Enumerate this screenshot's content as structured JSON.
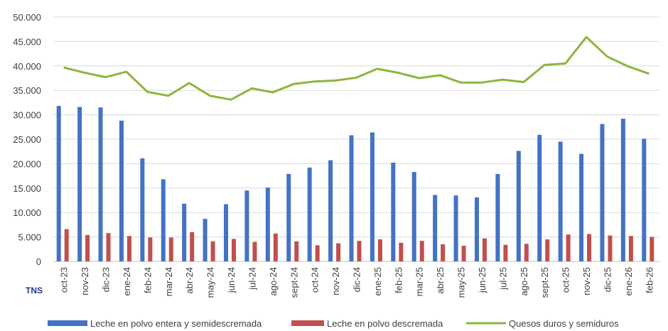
{
  "chart_data": {
    "type": "bar",
    "unit_label": "TNS",
    "ylim": [
      0,
      50000
    ],
    "yticks": [
      "0",
      "5.000",
      "10.000",
      "15.000",
      "20.000",
      "25.000",
      "30.000",
      "35.000",
      "40.000",
      "45.000",
      "50.000"
    ],
    "categories": [
      "oct-23",
      "nov-23",
      "dic-23",
      "ene-24",
      "feb-24",
      "mar-24",
      "abr-24",
      "may-24",
      "jun-24",
      "jul-24",
      "ago-24",
      "sept-24",
      "oct-24",
      "nov-24",
      "dic-24",
      "ene-25",
      "feb-25",
      "mar-25",
      "abr-25",
      "may-25",
      "jun-25",
      "jul-25",
      "ago-25",
      "sept-25",
      "oct-25",
      "nov-25",
      "dic-25",
      "ene-26",
      "feb-26"
    ],
    "grid": "horizontal",
    "legend_position": "bottom",
    "series": [
      {
        "name": "Leche en polvo entera y semidescremada",
        "kind": "bar",
        "color": "#4472c4",
        "values": [
          31800,
          31600,
          31500,
          28800,
          21100,
          16800,
          11800,
          8700,
          11700,
          14500,
          15100,
          17900,
          19200,
          20700,
          25800,
          26400,
          20200,
          18300,
          13600,
          13500,
          13100,
          17900,
          22600,
          25900,
          24500,
          22000,
          28100,
          29200,
          25100
        ]
      },
      {
        "name": "Leche en polvo descremada",
        "kind": "bar",
        "color": "#c0504d",
        "values": [
          6600,
          5400,
          5800,
          5200,
          4900,
          4900,
          6000,
          4100,
          4600,
          4000,
          5700,
          4100,
          3300,
          3700,
          4200,
          4500,
          3800,
          4200,
          3500,
          3200,
          4700,
          3400,
          3600,
          4500,
          5500,
          5600,
          5300,
          5200,
          5000
        ]
      },
      {
        "name": "Quesos duros y semiduros",
        "kind": "line",
        "color": "#8fb43e",
        "values": [
          39700,
          38600,
          37700,
          38800,
          34700,
          33900,
          36500,
          33900,
          33100,
          35400,
          34600,
          36300,
          36800,
          37000,
          37600,
          39400,
          38600,
          37500,
          38100,
          36600,
          36600,
          37200,
          36700,
          40200,
          40500,
          45900,
          41900,
          39900,
          38400
        ]
      }
    ]
  }
}
